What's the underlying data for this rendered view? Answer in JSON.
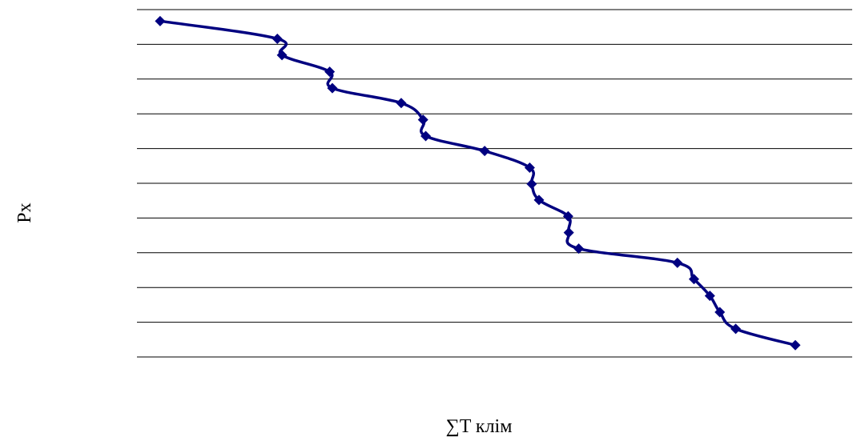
{
  "chart_data": {
    "type": "line",
    "title": "",
    "xlabel": "∑T клім",
    "ylabel": "Px",
    "grid": true,
    "legend": "none",
    "colors": {
      "series": "#000080",
      "grid": "#000000",
      "background": "#ffffff"
    },
    "marker": "diamond",
    "x_range": [
      0,
      1000
    ],
    "y_range": [
      0,
      100
    ],
    "series": [
      {
        "points": [
          [
            41,
            96.7
          ],
          [
            218,
            91.6
          ],
          [
            225,
            86.9
          ],
          [
            297,
            82.1
          ],
          [
            301,
            77.4
          ],
          [
            405,
            73.1
          ],
          [
            438,
            68.3
          ],
          [
            442,
            63.6
          ],
          [
            531,
            59.3
          ],
          [
            599,
            54.5
          ],
          [
            602,
            49.8
          ],
          [
            613,
            45.2
          ],
          [
            657,
            40.5
          ],
          [
            658,
            35.8
          ],
          [
            673,
            31.2
          ],
          [
            822,
            27.1
          ],
          [
            847,
            22.4
          ],
          [
            871,
            17.6
          ],
          [
            886,
            12.9
          ],
          [
            910,
            8.1
          ],
          [
            1000,
            3.4
          ]
        ]
      }
    ]
  }
}
